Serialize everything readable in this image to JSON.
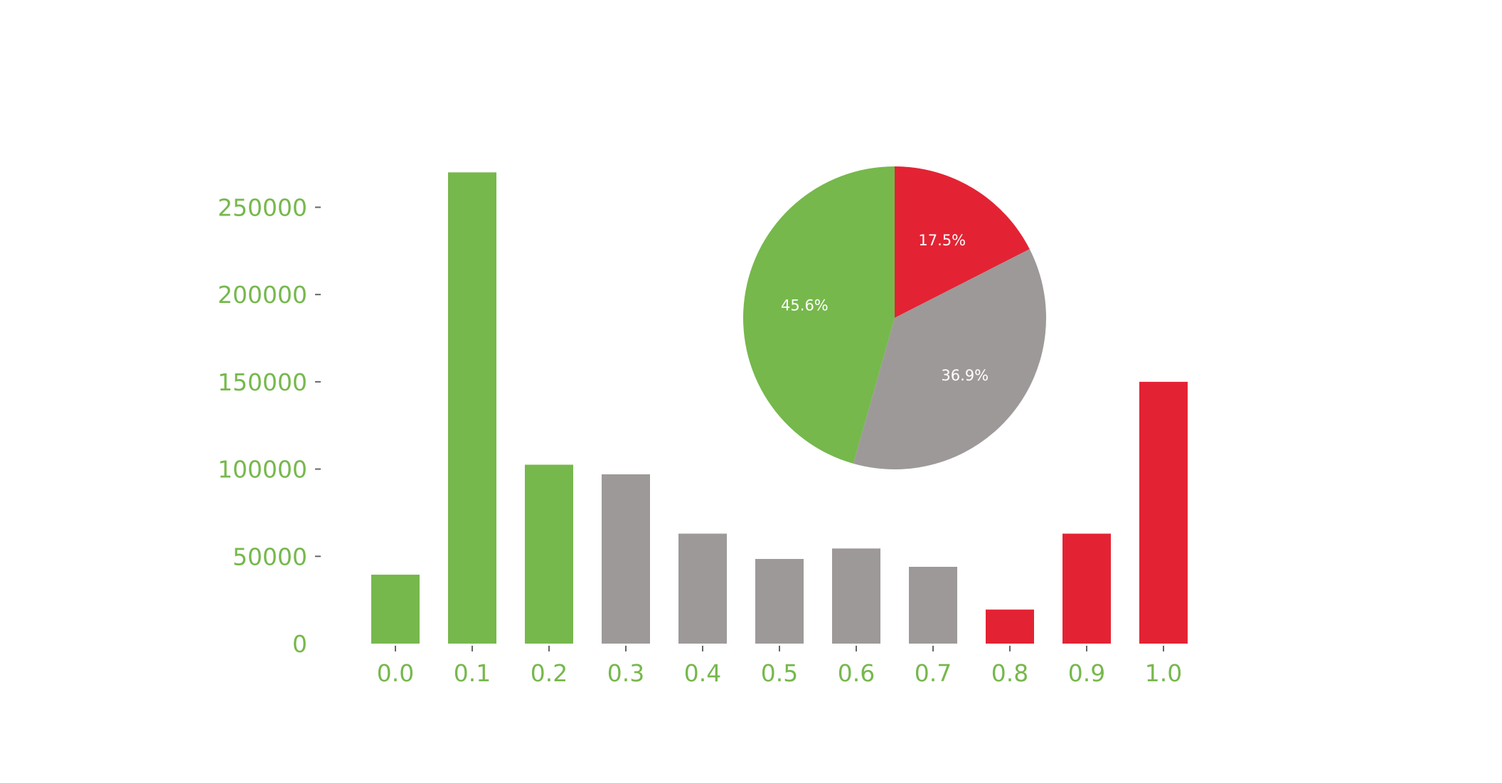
{
  "colors": {
    "green": "#76b84c",
    "gray": "#9d9999",
    "red": "#e32334",
    "axis_text": "#76b84c",
    "tick": "#666666"
  },
  "chart_data": [
    {
      "type": "bar",
      "categories": [
        "0.0",
        "0.1",
        "0.2",
        "0.3",
        "0.4",
        "0.5",
        "0.6",
        "0.7",
        "0.8",
        "0.9",
        "1.0"
      ],
      "values": [
        39500,
        270000,
        102500,
        97000,
        63000,
        48500,
        54500,
        44000,
        19500,
        63000,
        150000
      ],
      "bar_colors": [
        "green",
        "green",
        "green",
        "gray",
        "gray",
        "gray",
        "gray",
        "gray",
        "red",
        "red",
        "red"
      ],
      "yticks": [
        0,
        50000,
        100000,
        150000,
        200000,
        250000
      ],
      "ylim": [
        0,
        275000
      ],
      "grid": false,
      "title": "",
      "xlabel": "",
      "ylabel": ""
    },
    {
      "type": "pie",
      "slices": [
        {
          "label": "17.5%",
          "value": 17.5,
          "color": "red"
        },
        {
          "label": "36.9%",
          "value": 36.9,
          "color": "gray"
        },
        {
          "label": "45.6%",
          "value": 45.6,
          "color": "green"
        }
      ],
      "title": ""
    }
  ]
}
